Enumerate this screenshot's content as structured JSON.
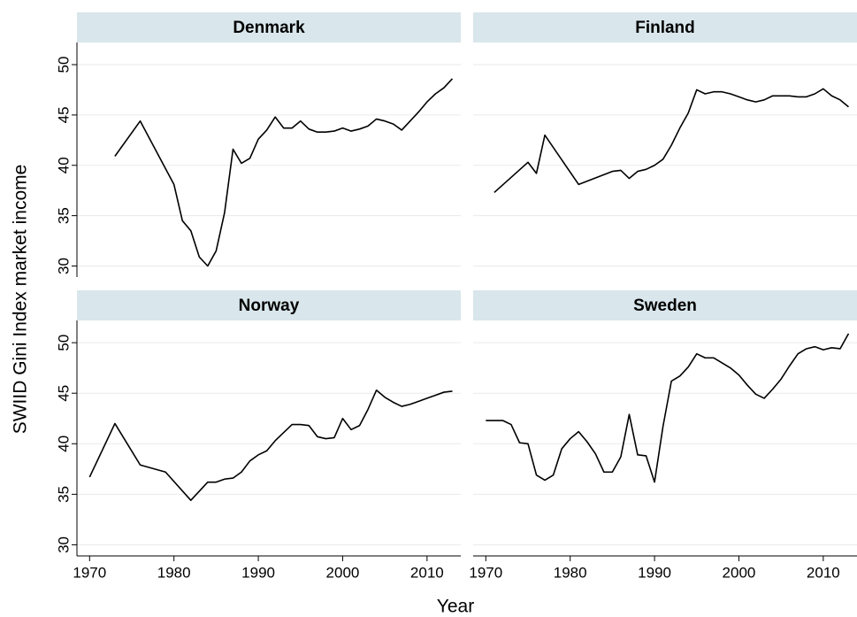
{
  "axis_labels": {
    "y": "SWIID Gini Index market income",
    "x": "Year"
  },
  "chart_data": [
    {
      "type": "line",
      "title": "Denmark",
      "color": "#000000",
      "grid": true,
      "x": [
        1973,
        1976,
        1980,
        1981,
        1982,
        1983,
        1984,
        1985,
        1986,
        1987,
        1988,
        1989,
        1990,
        1991,
        1992,
        1993,
        1994,
        1995,
        1996,
        1997,
        1998,
        1999,
        2000,
        2001,
        2002,
        2003,
        2004,
        2005,
        2006,
        2007,
        2008,
        2009,
        2010,
        2011,
        2012,
        2013
      ],
      "values": [
        40.9,
        44.4,
        38.1,
        34.5,
        33.5,
        30.9,
        30.0,
        31.5,
        35.3,
        41.6,
        40.2,
        40.7,
        42.6,
        43.5,
        44.8,
        43.7,
        43.7,
        44.4,
        43.6,
        43.3,
        43.3,
        43.4,
        43.7,
        43.4,
        43.6,
        43.9,
        44.6,
        44.4,
        44.1,
        43.5,
        44.4,
        45.3,
        46.3,
        47.1,
        47.7,
        48.6
      ],
      "xlim": [
        1968.5,
        2014
      ],
      "ylim": [
        28.9,
        52.2
      ],
      "yticks": [
        30,
        35,
        40,
        45,
        50
      ]
    },
    {
      "type": "line",
      "title": "Finland",
      "color": "#000000",
      "grid": true,
      "x": [
        1971,
        1975,
        1976,
        1977,
        1981,
        1985,
        1986,
        1987,
        1988,
        1989,
        1990,
        1991,
        1992,
        1993,
        1994,
        1995,
        1996,
        1997,
        1998,
        1999,
        2000,
        2001,
        2002,
        2003,
        2004,
        2005,
        2006,
        2007,
        2008,
        2009,
        2010,
        2011,
        2012,
        2013
      ],
      "values": [
        37.3,
        40.3,
        39.2,
        43.0,
        38.1,
        39.4,
        39.5,
        38.7,
        39.4,
        39.6,
        40.0,
        40.6,
        42.0,
        43.7,
        45.2,
        47.5,
        47.1,
        47.3,
        47.3,
        47.1,
        46.8,
        46.5,
        46.3,
        46.5,
        46.9,
        46.9,
        46.9,
        46.8,
        46.8,
        47.1,
        47.6,
        46.9,
        46.5,
        45.8
      ],
      "xlim": [
        1968.5,
        2014
      ],
      "ylim": [
        28.9,
        52.2
      ],
      "yticks": [
        30,
        35,
        40,
        45,
        50
      ]
    },
    {
      "type": "line",
      "title": "Norway",
      "color": "#000000",
      "grid": true,
      "x": [
        1970,
        1973,
        1976,
        1979,
        1982,
        1984,
        1985,
        1986,
        1987,
        1988,
        1989,
        1990,
        1991,
        1992,
        1993,
        1994,
        1995,
        1996,
        1997,
        1998,
        1999,
        2000,
        2001,
        2002,
        2003,
        2004,
        2005,
        2006,
        2007,
        2008,
        2009,
        2010,
        2011,
        2012,
        2013
      ],
      "values": [
        36.7,
        42.0,
        37.9,
        37.2,
        34.4,
        36.2,
        36.2,
        36.5,
        36.6,
        37.2,
        38.3,
        38.9,
        39.3,
        40.3,
        41.1,
        41.9,
        41.9,
        41.8,
        40.7,
        40.5,
        40.6,
        42.5,
        41.4,
        41.8,
        43.4,
        45.3,
        44.6,
        44.1,
        43.7,
        43.9,
        44.2,
        44.5,
        44.8,
        45.1,
        45.2
      ],
      "xlim": [
        1968.5,
        2014
      ],
      "ylim": [
        28.9,
        52.2
      ],
      "yticks": [
        30,
        35,
        40,
        45,
        50
      ],
      "xticks": [
        1970,
        1980,
        1990,
        2000,
        2010
      ]
    },
    {
      "type": "line",
      "title": "Sweden",
      "color": "#000000",
      "grid": true,
      "x": [
        1970,
        1972,
        1973,
        1974,
        1975,
        1976,
        1977,
        1978,
        1979,
        1980,
        1981,
        1982,
        1983,
        1984,
        1985,
        1986,
        1987,
        1988,
        1989,
        1990,
        1991,
        1992,
        1993,
        1994,
        1995,
        1996,
        1997,
        1998,
        1999,
        2000,
        2001,
        2002,
        2003,
        2004,
        2005,
        2006,
        2007,
        2008,
        2009,
        2010,
        2011,
        2012,
        2013
      ],
      "values": [
        42.3,
        42.3,
        41.9,
        40.1,
        40.0,
        36.9,
        36.4,
        36.9,
        39.5,
        40.5,
        41.2,
        40.2,
        39.0,
        37.2,
        37.2,
        38.7,
        42.9,
        38.9,
        38.8,
        36.2,
        41.7,
        46.2,
        46.7,
        47.6,
        48.9,
        48.5,
        48.5,
        48.0,
        47.5,
        46.8,
        45.8,
        44.9,
        44.5,
        45.4,
        46.4,
        47.7,
        48.9,
        49.4,
        49.6,
        49.3,
        49.5,
        49.4,
        50.9
      ],
      "xlim": [
        1968.5,
        2014
      ],
      "ylim": [
        28.9,
        52.2
      ],
      "yticks": [
        30,
        35,
        40,
        45,
        50
      ],
      "xticks": [
        1970,
        1980,
        1990,
        2000,
        2010
      ]
    }
  ]
}
